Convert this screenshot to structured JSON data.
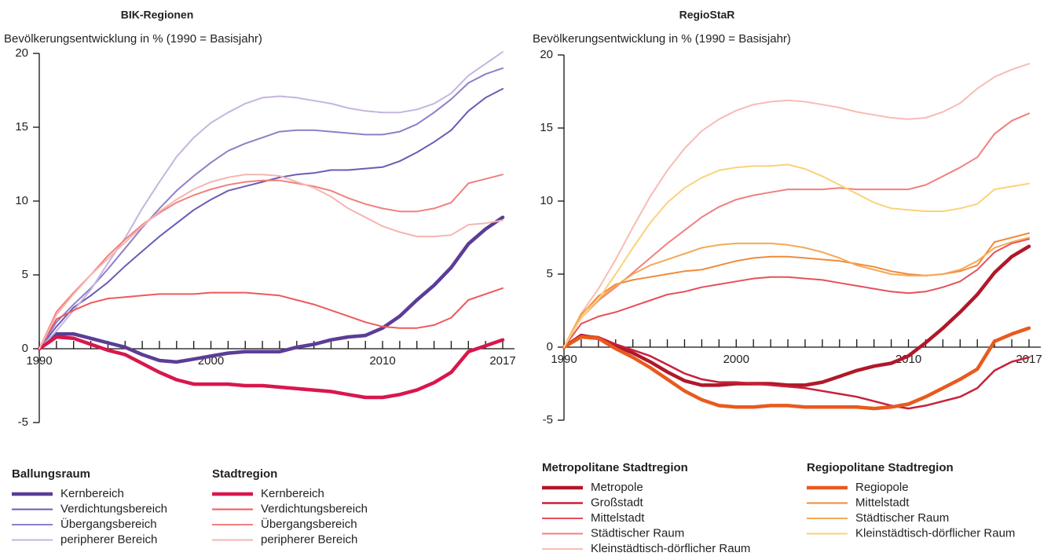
{
  "chart_data": [
    {
      "type": "line",
      "title": "BIK-Regionen",
      "ylabel": "Bevölkerungsentwicklung in % (1990 = Basisjahr)",
      "x": [
        1990,
        1991,
        1992,
        1993,
        1994,
        1995,
        1996,
        1997,
        1998,
        1999,
        2000,
        2001,
        2002,
        2003,
        2004,
        2005,
        2006,
        2007,
        2008,
        2009,
        2010,
        2011,
        2012,
        2013,
        2014,
        2015,
        2016,
        2017
      ],
      "xlim": [
        1990,
        2017
      ],
      "xticks": [
        1990,
        2000,
        2010,
        2017
      ],
      "xticks_minor": [
        1991,
        1992,
        1993,
        1994,
        1995,
        1996,
        1997,
        1998,
        1999,
        2001,
        2002,
        2003,
        2004,
        2005,
        2006,
        2007,
        2008,
        2009,
        2011,
        2012,
        2013,
        2014,
        2015,
        2016
      ],
      "ylim": [
        -5,
        20
      ],
      "yticks": [
        -5,
        0,
        5,
        10,
        15,
        20
      ],
      "series": [
        {
          "group": "Ballungsraum",
          "name": "Kernbereich",
          "color": "#5b3d96",
          "line_width": 4.5,
          "values": [
            0,
            1.0,
            1.0,
            0.7,
            0.4,
            0.1,
            -0.4,
            -0.8,
            -0.9,
            -0.7,
            -0.5,
            -0.3,
            -0.2,
            -0.2,
            -0.2,
            0.1,
            0.3,
            0.6,
            0.8,
            0.9,
            1.4,
            2.2,
            3.3,
            4.3,
            5.5,
            7.1,
            8.1,
            8.9
          ]
        },
        {
          "group": "Ballungsraum",
          "name": "Verdichtungsbereich",
          "color": "#6c5bb5",
          "line_width": 2,
          "values": [
            0,
            1.5,
            2.8,
            3.6,
            4.5,
            5.6,
            6.6,
            7.6,
            8.5,
            9.4,
            10.1,
            10.7,
            11.0,
            11.3,
            11.6,
            11.8,
            11.9,
            12.1,
            12.1,
            12.2,
            12.3,
            12.7,
            13.3,
            14.0,
            14.8,
            16.1,
            17.0,
            17.6
          ]
        },
        {
          "group": "Ballungsraum",
          "name": "Übergangsbereich",
          "color": "#8f7fc8",
          "line_width": 2,
          "values": [
            0,
            1.8,
            3.0,
            4.1,
            5.4,
            6.8,
            8.2,
            9.5,
            10.7,
            11.7,
            12.6,
            13.4,
            13.9,
            14.3,
            14.7,
            14.8,
            14.8,
            14.7,
            14.6,
            14.5,
            14.5,
            14.7,
            15.2,
            16.0,
            16.9,
            18.0,
            18.6,
            19.0
          ]
        },
        {
          "group": "Ballungsraum",
          "name": "peripherer Bereich",
          "color": "#c5b5e0",
          "line_width": 2,
          "values": [
            0,
            1.2,
            2.6,
            4.0,
            5.8,
            7.5,
            9.5,
            11.3,
            13.0,
            14.3,
            15.3,
            16.0,
            16.6,
            17.0,
            17.1,
            17.0,
            16.8,
            16.6,
            16.3,
            16.1,
            16.0,
            16.0,
            16.2,
            16.6,
            17.3,
            18.5,
            19.3,
            20.1
          ]
        },
        {
          "group": "Stadtregion",
          "name": "Kernbereich",
          "color": "#d8174d",
          "line_width": 4.5,
          "values": [
            0,
            0.8,
            0.7,
            0.3,
            -0.1,
            -0.4,
            -1.0,
            -1.6,
            -2.1,
            -2.4,
            -2.4,
            -2.4,
            -2.5,
            -2.5,
            -2.6,
            -2.7,
            -2.8,
            -2.9,
            -3.1,
            -3.3,
            -3.3,
            -3.1,
            -2.8,
            -2.3,
            -1.6,
            -0.2,
            0.2,
            0.6
          ]
        },
        {
          "group": "Stadtregion",
          "name": "Verdichtungsbereich",
          "color": "#ee5a5a",
          "line_width": 2,
          "values": [
            0,
            2.0,
            2.6,
            3.1,
            3.4,
            3.5,
            3.6,
            3.7,
            3.7,
            3.7,
            3.8,
            3.8,
            3.8,
            3.7,
            3.6,
            3.3,
            3.0,
            2.6,
            2.2,
            1.8,
            1.5,
            1.4,
            1.4,
            1.6,
            2.1,
            3.3,
            3.7,
            4.1
          ]
        },
        {
          "group": "Stadtregion",
          "name": "Übergangsbereich",
          "color": "#f08080",
          "line_width": 2,
          "values": [
            0,
            2.5,
            3.8,
            5.0,
            6.3,
            7.4,
            8.4,
            9.2,
            9.9,
            10.4,
            10.8,
            11.1,
            11.3,
            11.4,
            11.4,
            11.2,
            11.0,
            10.7,
            10.2,
            9.8,
            9.5,
            9.3,
            9.3,
            9.5,
            9.9,
            11.2,
            11.5,
            11.8
          ]
        },
        {
          "group": "Stadtregion",
          "name": "peripherer Bereich",
          "color": "#f6b5b0",
          "line_width": 2,
          "values": [
            0,
            2.3,
            3.7,
            5.0,
            6.1,
            7.2,
            8.3,
            9.3,
            10.1,
            10.8,
            11.3,
            11.6,
            11.8,
            11.8,
            11.7,
            11.3,
            10.9,
            10.3,
            9.5,
            8.9,
            8.3,
            7.9,
            7.6,
            7.6,
            7.7,
            8.4,
            8.5,
            8.7
          ]
        }
      ]
    },
    {
      "type": "line",
      "title": "RegioStaR",
      "ylabel": "Bevölkerungsentwicklung in % (1990 = Basisjahr)",
      "x": [
        1990,
        1991,
        1992,
        1993,
        1994,
        1995,
        1996,
        1997,
        1998,
        1999,
        2000,
        2001,
        2002,
        2003,
        2004,
        2005,
        2006,
        2007,
        2008,
        2009,
        2010,
        2011,
        2012,
        2013,
        2014,
        2015,
        2016,
        2017
      ],
      "xlim": [
        1990,
        2017
      ],
      "xticks": [
        1990,
        2000,
        2010,
        2017
      ],
      "xticks_minor": [
        1991,
        1992,
        1993,
        1994,
        1995,
        1996,
        1997,
        1998,
        1999,
        2001,
        2002,
        2003,
        2004,
        2005,
        2006,
        2007,
        2008,
        2009,
        2011,
        2012,
        2013,
        2014,
        2015,
        2016
      ],
      "ylim": [
        -5,
        20
      ],
      "yticks": [
        -5,
        0,
        5,
        10,
        15,
        20
      ],
      "series": [
        {
          "group": "Metropolitane Stadtregion",
          "name": "Metropole",
          "color": "#b0182a",
          "line_width": 4.5,
          "values": [
            0,
            0.8,
            0.6,
            0.1,
            -0.4,
            -1.0,
            -1.7,
            -2.3,
            -2.6,
            -2.6,
            -2.5,
            -2.5,
            -2.5,
            -2.6,
            -2.6,
            -2.4,
            -2.0,
            -1.6,
            -1.3,
            -1.1,
            -0.6,
            0.3,
            1.3,
            2.4,
            3.6,
            5.1,
            6.2,
            6.9
          ]
        },
        {
          "group": "Metropolitane Stadtregion",
          "name": "Großstadt",
          "color": "#c8203c",
          "line_width": 2.5,
          "values": [
            0,
            0.8,
            0.7,
            0.2,
            -0.2,
            -0.6,
            -1.2,
            -1.8,
            -2.2,
            -2.4,
            -2.4,
            -2.5,
            -2.6,
            -2.7,
            -2.8,
            -3.0,
            -3.2,
            -3.4,
            -3.7,
            -4.0,
            -4.2,
            -4.0,
            -3.7,
            -3.4,
            -2.8,
            -1.6,
            -1.0,
            -0.7
          ]
        },
        {
          "group": "Metropolitane Stadtregion",
          "name": "Mittelstadt",
          "color": "#e6505a",
          "line_width": 2,
          "values": [
            0,
            1.6,
            2.1,
            2.4,
            2.8,
            3.2,
            3.6,
            3.8,
            4.1,
            4.3,
            4.5,
            4.7,
            4.8,
            4.8,
            4.7,
            4.6,
            4.4,
            4.2,
            4.0,
            3.8,
            3.7,
            3.8,
            4.1,
            4.5,
            5.3,
            6.5,
            7.1,
            7.4
          ]
        },
        {
          "group": "Metropolitane Stadtregion",
          "name": "Städtischer Raum",
          "color": "#f08080",
          "line_width": 2,
          "values": [
            0,
            2.0,
            3.2,
            4.1,
            5.1,
            6.1,
            7.1,
            8.0,
            8.9,
            9.6,
            10.1,
            10.4,
            10.6,
            10.8,
            10.8,
            10.8,
            10.9,
            10.8,
            10.8,
            10.8,
            10.8,
            11.1,
            11.7,
            12.3,
            13.0,
            14.6,
            15.5,
            16.0
          ]
        },
        {
          "group": "Metropolitane Stadtregion",
          "name": "Kleinstädtisch-dörflicher Raum",
          "color": "#f7bcb5",
          "line_width": 2,
          "values": [
            0,
            2.3,
            4.0,
            6.0,
            8.2,
            10.3,
            12.1,
            13.6,
            14.8,
            15.6,
            16.2,
            16.6,
            16.8,
            16.9,
            16.8,
            16.6,
            16.4,
            16.1,
            15.9,
            15.7,
            15.6,
            15.7,
            16.1,
            16.7,
            17.7,
            18.5,
            19.0,
            19.4
          ]
        },
        {
          "group": "Regiopolitane Stadtregion",
          "name": "Regiopole",
          "color": "#e85a1e",
          "line_width": 4.5,
          "values": [
            0,
            0.7,
            0.6,
            -0.1,
            -0.7,
            -1.4,
            -2.2,
            -3.0,
            -3.6,
            -4.0,
            -4.1,
            -4.1,
            -4.0,
            -4.0,
            -4.1,
            -4.1,
            -4.1,
            -4.1,
            -4.2,
            -4.1,
            -3.9,
            -3.4,
            -2.8,
            -2.2,
            -1.5,
            0.4,
            0.9,
            1.3
          ]
        },
        {
          "group": "Regiopolitane Stadtregion",
          "name": "Mittelstadt",
          "color": "#f08a3a",
          "line_width": 2,
          "values": [
            0,
            2.2,
            3.5,
            4.3,
            4.6,
            4.8,
            5.0,
            5.2,
            5.3,
            5.6,
            5.9,
            6.1,
            6.2,
            6.2,
            6.1,
            6.0,
            5.9,
            5.7,
            5.5,
            5.2,
            5.0,
            4.9,
            5.0,
            5.2,
            5.6,
            7.2,
            7.5,
            7.8
          ]
        },
        {
          "group": "Regiopolitane Stadtregion",
          "name": "Städtischer Raum",
          "color": "#f5a955",
          "line_width": 2,
          "values": [
            0,
            2.3,
            3.3,
            4.2,
            5.0,
            5.6,
            6.0,
            6.4,
            6.8,
            7.0,
            7.1,
            7.1,
            7.1,
            7.0,
            6.8,
            6.5,
            6.1,
            5.6,
            5.3,
            5.0,
            4.9,
            4.9,
            5.0,
            5.3,
            5.9,
            6.8,
            7.2,
            7.5
          ]
        },
        {
          "group": "Regiopolitane Stadtregion",
          "name": "Kleinstädtisch-dörflicher Raum",
          "color": "#fad27a",
          "line_width": 2,
          "values": [
            0,
            2.0,
            3.3,
            5.0,
            6.8,
            8.5,
            9.9,
            10.9,
            11.6,
            12.1,
            12.3,
            12.4,
            12.4,
            12.5,
            12.2,
            11.7,
            11.1,
            10.5,
            9.9,
            9.5,
            9.4,
            9.3,
            9.3,
            9.5,
            9.8,
            10.8,
            11.0,
            11.2
          ]
        }
      ]
    }
  ]
}
